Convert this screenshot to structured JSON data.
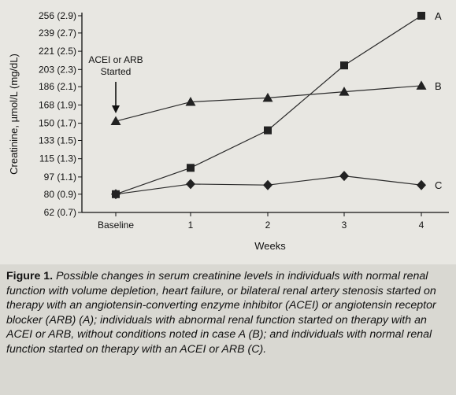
{
  "chart_data": {
    "type": "line",
    "ylabel": "Creatinine, µmol/L (mg/dL)",
    "xlabel": "Weeks",
    "categories": [
      "Baseline",
      "1",
      "2",
      "3",
      "4"
    ],
    "y_ticks": [
      {
        "value": 62,
        "label": "62 (0.7)"
      },
      {
        "value": 80,
        "label": "80 (0.9)"
      },
      {
        "value": 97,
        "label": "97 (1.1)"
      },
      {
        "value": 115,
        "label": "115 (1.3)"
      },
      {
        "value": 133,
        "label": "133 (1.5)"
      },
      {
        "value": 150,
        "label": "150 (1.7)"
      },
      {
        "value": 168,
        "label": "168 (1.9)"
      },
      {
        "value": 186,
        "label": "186 (2.1)"
      },
      {
        "value": 203,
        "label": "203 (2.3)"
      },
      {
        "value": 221,
        "label": "221 (2.5)"
      },
      {
        "value": 239,
        "label": "239 (2.7)"
      },
      {
        "value": 256,
        "label": "256 (2.9)"
      }
    ],
    "ylim": [
      62,
      256
    ],
    "series": [
      {
        "name": "A",
        "marker": "square",
        "values": [
          80,
          106,
          143,
          207,
          256
        ]
      },
      {
        "name": "B",
        "marker": "triangle",
        "values": [
          152,
          171,
          175,
          181,
          187
        ]
      },
      {
        "name": "C",
        "marker": "diamond",
        "values": [
          80,
          90,
          89,
          98,
          89
        ]
      }
    ],
    "annotation": {
      "line1": "ACEI or ARB",
      "line2": "Started",
      "at_category": "Baseline"
    },
    "grid": false,
    "colors": {
      "line": "#2a2a2a",
      "marker": "#222222",
      "axis": "#111111"
    }
  },
  "caption": {
    "lead": "Figure 1.",
    "body": "Possible changes in serum creatinine levels in individuals with normal renal function with volume depletion, heart failure, or bilateral renal artery stenosis started on therapy with an angiotensin-converting enzyme inhibitor (ACEI) or angiotensin receptor blocker (ARB) (A); individuals with abnormal renal function started on therapy with an ACEI or ARB, without conditions noted in case A (B); and individuals with normal renal function started on therapy with an ACEI or ARB (C)."
  }
}
